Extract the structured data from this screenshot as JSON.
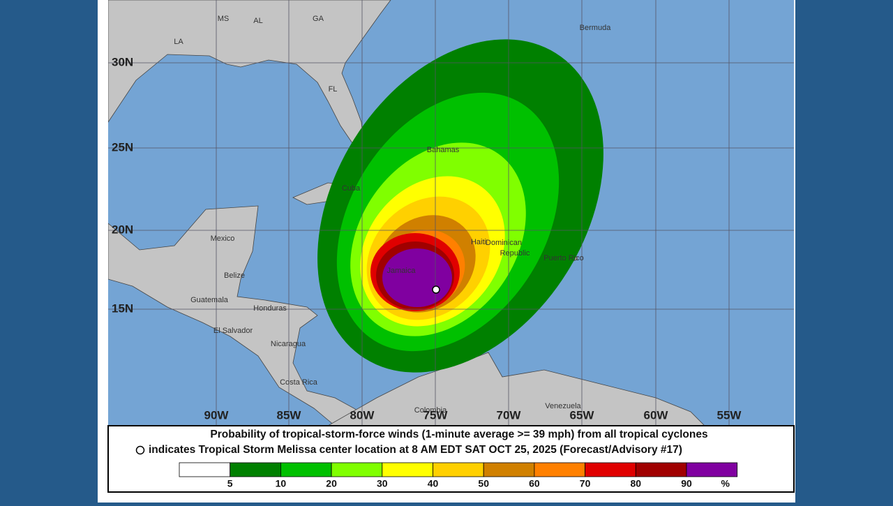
{
  "map": {
    "lat_labels": [
      "30N",
      "25N",
      "20N",
      "15N"
    ],
    "lon_labels": [
      "90W",
      "85W",
      "80W",
      "75W",
      "70W",
      "65W",
      "60W",
      "55W"
    ],
    "places": [
      "MS",
      "AL",
      "GA",
      "LA",
      "FL",
      "Bermuda",
      "Bahamas",
      "Cuba",
      "Mexico",
      "Belize",
      "Guatemala",
      "Honduras",
      "El Salvador",
      "Nicaragua",
      "Costa Rica",
      "Jamaica",
      "Haiti",
      "Dominican",
      "Republic",
      "Puerto Rico",
      "Venezuela",
      "Colombia"
    ]
  },
  "caption": {
    "line1": "Probability of tropical-storm-force winds (1-minute average >= 39 mph) from all tropical cyclones",
    "line2": "indicates Tropical Storm Melissa center location at 8 AM EDT SAT OCT 25, 2025 (Forecast/Advisory #17)"
  },
  "legend": {
    "colors": [
      "#ffffff",
      "#008000",
      "#00c000",
      "#80ff00",
      "#ffff00",
      "#ffd000",
      "#d08000",
      "#ff8000",
      "#e00000",
      "#a00000",
      "#8000a0"
    ],
    "labels": [
      "5",
      "10",
      "20",
      "30",
      "40",
      "50",
      "60",
      "70",
      "80",
      "90",
      "%"
    ]
  }
}
